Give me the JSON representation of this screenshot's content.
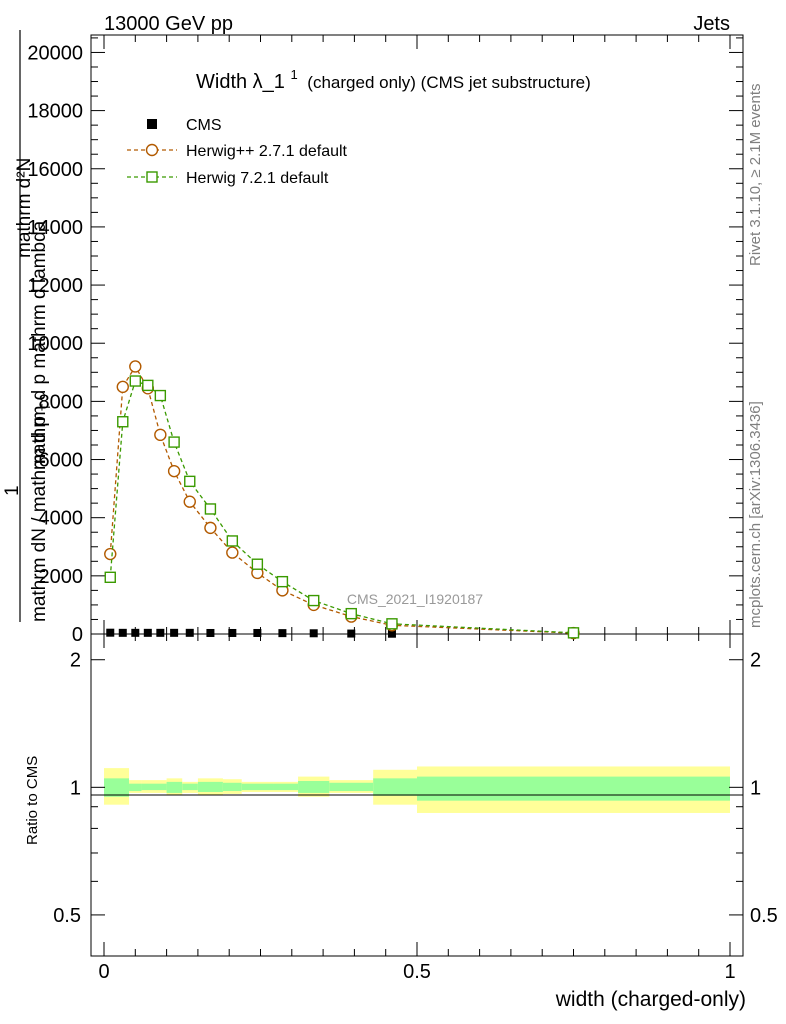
{
  "header": {
    "left": "13000 GeV pp",
    "right": "Jets",
    "side_rivet": "Rivet 3.1.10, ≥ 2.1M events",
    "side_mcplots": "mcplots.cern.ch [arXiv:1306.3436]",
    "watermark": "CMS_2021_I1920187"
  },
  "chart_data": {
    "type": "line",
    "title_main": "Width λ_1",
    "title_sup": "1",
    "title_rest": "(charged only) (CMS jet substructure)",
    "ylabel_line1": "mathrm d²N",
    "ylabel_line1b": "mathrm d p",
    "ylabel_one": "1",
    "ylabel_line2": "mathrm dN / mathrm d p",
    "ylabel_sub": "T",
    "ylabel_frac": "mathrm d p mathrm d lambda",
    "xlabel": "width (charged-only)",
    "xlim": [
      0,
      1
    ],
    "ylim": [
      0,
      20600
    ],
    "x_ticks": [
      {
        "v": 0,
        "label": "0"
      },
      {
        "v": 0.5,
        "label": "0.5"
      },
      {
        "v": 1,
        "label": "1"
      }
    ],
    "y_ticks": [
      {
        "v": 0,
        "label": "0"
      },
      {
        "v": 2000,
        "label": "2000"
      },
      {
        "v": 4000,
        "label": "4000"
      },
      {
        "v": 6000,
        "label": "6000"
      },
      {
        "v": 8000,
        "label": "8000"
      },
      {
        "v": 10000,
        "label": "10000"
      },
      {
        "v": 12000,
        "label": "12000"
      },
      {
        "v": 14000,
        "label": "14000"
      },
      {
        "v": 16000,
        "label": "16000"
      },
      {
        "v": 18000,
        "label": "18000"
      },
      {
        "v": 20000,
        "label": "20000"
      }
    ],
    "legend_position": "top-left",
    "series": [
      {
        "name": "CMS",
        "marker": "square-filled",
        "color": "#000000",
        "x": [
          0.01,
          0.03,
          0.05,
          0.07,
          0.09,
          0.112,
          0.137,
          0.17,
          0.205,
          0.245,
          0.285,
          0.335,
          0.395,
          0.46,
          0.75
        ],
        "y": [
          45,
          40,
          40,
          40,
          40,
          40,
          40,
          35,
          35,
          35,
          30,
          25,
          15,
          10,
          5
        ]
      },
      {
        "name": "Herwig++ 2.7.1 default",
        "marker": "circle-open",
        "color": "#b25a00",
        "x": [
          0.01,
          0.03,
          0.05,
          0.07,
          0.09,
          0.112,
          0.137,
          0.17,
          0.205,
          0.245,
          0.285,
          0.335,
          0.395,
          0.46,
          0.75
        ],
        "y": [
          2750,
          8500,
          9200,
          8450,
          6850,
          5600,
          4550,
          3650,
          2800,
          2100,
          1500,
          1000,
          600,
          300,
          30
        ]
      },
      {
        "name": "Herwig 7.2.1 default",
        "marker": "square-open",
        "color": "#3a9a00",
        "x": [
          0.01,
          0.03,
          0.05,
          0.07,
          0.09,
          0.112,
          0.137,
          0.17,
          0.205,
          0.245,
          0.285,
          0.335,
          0.395,
          0.46,
          0.75
        ],
        "y": [
          1950,
          7300,
          8700,
          8550,
          8200,
          6600,
          5250,
          4300,
          3200,
          2400,
          1800,
          1150,
          700,
          350,
          40
        ]
      }
    ],
    "ratio": {
      "ylabel": "Ratio to CMS",
      "y_ticks_left": [
        {
          "v": 0.5,
          "label": "0.5"
        },
        {
          "v": 1,
          "label": "1"
        },
        {
          "v": 2,
          "label": "2"
        }
      ],
      "y_ticks_right": [
        {
          "v": 0.5,
          "label": "0.5"
        },
        {
          "v": 1,
          "label": "1"
        },
        {
          "v": 2,
          "label": "2"
        }
      ],
      "log_range": [
        0.4,
        2.3
      ],
      "bands": [
        {
          "x0": 0.0,
          "x1": 0.04,
          "stat": [
            0.95,
            1.05
          ],
          "total": [
            0.91,
            1.11
          ]
        },
        {
          "x0": 0.04,
          "x1": 0.06,
          "stat": [
            0.98,
            1.02
          ],
          "total": [
            0.97,
            1.04
          ]
        },
        {
          "x0": 0.06,
          "x1": 0.1,
          "stat": [
            0.985,
            1.02
          ],
          "total": [
            0.97,
            1.04
          ]
        },
        {
          "x0": 0.1,
          "x1": 0.125,
          "stat": [
            0.97,
            1.03
          ],
          "total": [
            0.96,
            1.05
          ]
        },
        {
          "x0": 0.125,
          "x1": 0.15,
          "stat": [
            0.985,
            1.02
          ],
          "total": [
            0.97,
            1.03
          ]
        },
        {
          "x0": 0.15,
          "x1": 0.19,
          "stat": [
            0.975,
            1.03
          ],
          "total": [
            0.96,
            1.05
          ]
        },
        {
          "x0": 0.19,
          "x1": 0.22,
          "stat": [
            0.98,
            1.025
          ],
          "total": [
            0.965,
            1.045
          ]
        },
        {
          "x0": 0.22,
          "x1": 0.27,
          "stat": [
            0.985,
            1.02
          ],
          "total": [
            0.975,
            1.03
          ]
        },
        {
          "x0": 0.27,
          "x1": 0.31,
          "stat": [
            0.985,
            1.02
          ],
          "total": [
            0.975,
            1.03
          ]
        },
        {
          "x0": 0.31,
          "x1": 0.36,
          "stat": [
            0.97,
            1.035
          ],
          "total": [
            0.95,
            1.06
          ]
        },
        {
          "x0": 0.36,
          "x1": 0.43,
          "stat": [
            0.98,
            1.025
          ],
          "total": [
            0.97,
            1.04
          ]
        },
        {
          "x0": 0.43,
          "x1": 0.5,
          "stat": [
            0.955,
            1.05
          ],
          "total": [
            0.91,
            1.1
          ]
        },
        {
          "x0": 0.5,
          "x1": 1.0,
          "stat": [
            0.93,
            1.06
          ],
          "total": [
            0.87,
            1.12
          ]
        }
      ],
      "total_color": "#ffff99",
      "stat_color": "#99ff99"
    }
  }
}
